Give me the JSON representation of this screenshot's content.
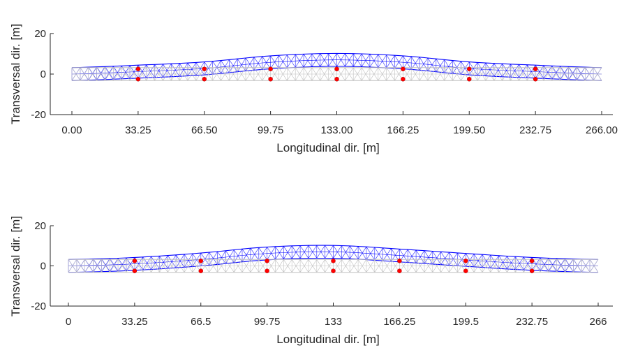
{
  "chart_data": [
    {
      "type": "line",
      "xlabel": "Longitudinal dir. [m]",
      "ylabel": "Transversal dir. [m]",
      "xlim": [
        0,
        266
      ],
      "ylim": [
        -20,
        20
      ],
      "xticks": [
        0,
        33.25,
        66.5,
        99.75,
        133,
        166.25,
        199.5,
        232.75,
        266
      ],
      "xtick_labels": [
        "0.00",
        "33.25",
        "66.50",
        "99.75",
        "133.00",
        "166.25",
        "199.50",
        "232.75",
        "266.00"
      ],
      "yticks": [
        -20,
        0,
        20
      ],
      "ytick_labels": [
        "-20",
        "0",
        "20"
      ],
      "grid": false,
      "series": [
        {
          "role": "deformed",
          "color": "#0000ff",
          "x": [
            0,
            33.25,
            66.5,
            99.75,
            133,
            166.25,
            199.5,
            232.75,
            266
          ],
          "y": [
            0,
            1.2,
            2.8,
            5.8,
            7.0,
            5.8,
            2.8,
            1.2,
            0
          ]
        },
        {
          "role": "undeformed",
          "color": "#c0c0c0",
          "x": [
            0,
            266
          ],
          "y": [
            0,
            0
          ]
        }
      ],
      "supports_x": [
        33.25,
        66.5,
        99.75,
        133,
        166.25,
        199.5,
        232.75
      ],
      "support_offsets_y": [
        2.5,
        -2.5
      ],
      "support_color": "#ff0000"
    },
    {
      "type": "line",
      "xlabel": "Longitudinal dir. [m]",
      "ylabel": "Transversal dir. [m]",
      "xlim": [
        0,
        266
      ],
      "ylim": [
        -20,
        20
      ],
      "xticks": [
        0,
        33.25,
        66.5,
        99.75,
        133,
        166.25,
        199.5,
        232.75,
        266
      ],
      "xtick_labels": [
        "0",
        "33.25",
        "66.5",
        "99.75",
        "133",
        "166.25",
        "199.5",
        "232.75",
        "266"
      ],
      "yticks": [
        -20,
        0,
        20
      ],
      "ytick_labels": [
        "-20",
        "0",
        "20"
      ],
      "grid": false,
      "series": [
        {
          "role": "deformed",
          "color": "#0000ff",
          "x": [
            0,
            33.25,
            66.5,
            99.75,
            133,
            166.25,
            199.5,
            232.75,
            266
          ],
          "y": [
            0,
            1.0,
            3.2,
            6.2,
            7.0,
            5.2,
            3.0,
            1.0,
            0
          ]
        },
        {
          "role": "undeformed",
          "color": "#c0c0c0",
          "x": [
            0,
            266
          ],
          "y": [
            0,
            0
          ]
        }
      ],
      "supports_x": [
        33.25,
        66.5,
        99.75,
        133,
        166.25,
        199.5,
        232.75
      ],
      "support_offsets_y": [
        2.5,
        -2.5
      ],
      "support_color": "#ff0000"
    }
  ]
}
